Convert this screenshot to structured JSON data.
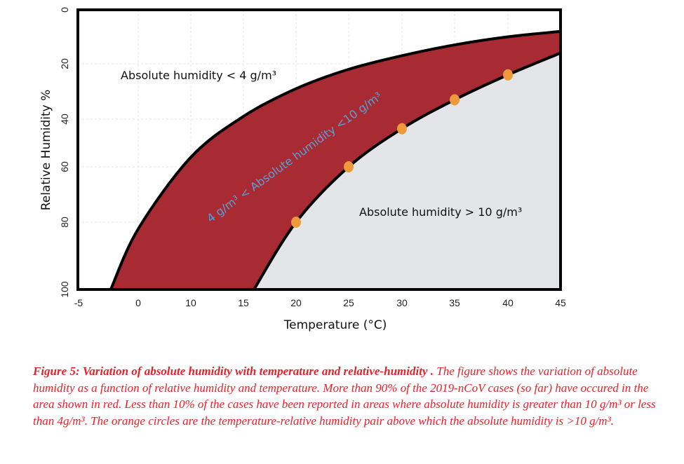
{
  "chart_data": {
    "type": "area",
    "xlabel": "Temperature (°C)",
    "ylabel": "Relative Humidity %",
    "x_tick_labels": [
      "-5",
      "0",
      "10",
      "15",
      "20",
      "25",
      "30",
      "35",
      "40",
      "45"
    ],
    "x_tick_values": [
      -5,
      0,
      10,
      15,
      20,
      25,
      30,
      35,
      40,
      45
    ],
    "y_tick_labels": [
      "0",
      "20",
      "40",
      "60",
      "80",
      "100"
    ],
    "y_tick_values": [
      0,
      20,
      40,
      60,
      80,
      100
    ],
    "xlim": [
      -5,
      45
    ],
    "ylim": [
      100,
      0
    ],
    "y_inverted": true,
    "grid": true,
    "series": [
      {
        "name": "4 g/m³ boundary",
        "x": [
          -2.3,
          0,
          10,
          15,
          20,
          25,
          30,
          35,
          40,
          45
        ],
        "y": [
          100,
          82,
          56,
          39,
          29,
          22,
          17,
          13,
          10,
          8
        ]
      },
      {
        "name": "10 g/m³ boundary",
        "x": [
          16,
          20,
          25,
          30,
          35,
          40,
          45
        ],
        "y": [
          100,
          80,
          60,
          44,
          33,
          24,
          16
        ]
      },
      {
        "name": "orange circles",
        "type": "scatter",
        "x": [
          20,
          25,
          30,
          35,
          40
        ],
        "y": [
          80,
          60,
          44,
          33,
          24
        ]
      }
    ],
    "regions": {
      "low": "Absolute humidity < 4 g/m³",
      "mid": "4 g/m³ < Absolute humidity <10 g/m³",
      "high": "Absolute humidity > 10 g/m³"
    },
    "colors": {
      "band": "#a82a33",
      "high": "#e4e5e8",
      "dots": "#ef9a3a",
      "mid_label": "#5b9fd6"
    }
  },
  "caption": {
    "title": "Figure 5: Variation of absolute humidity with temperature and relative-humidity .",
    "body": " The figure shows the variation of absolute humidity as a function of relative  humidity  and temperature. More than 90% of the 2019-nCoV cases (so far) have occured in the area shown in red. Less than 10% of the cases have been reported in areas where absolute humidity is greater than 10 g/m³ or less than 4g/m³. The orange circles are the temperature-relative humidity pair above which the absolute humidity is >10 g/m³."
  }
}
